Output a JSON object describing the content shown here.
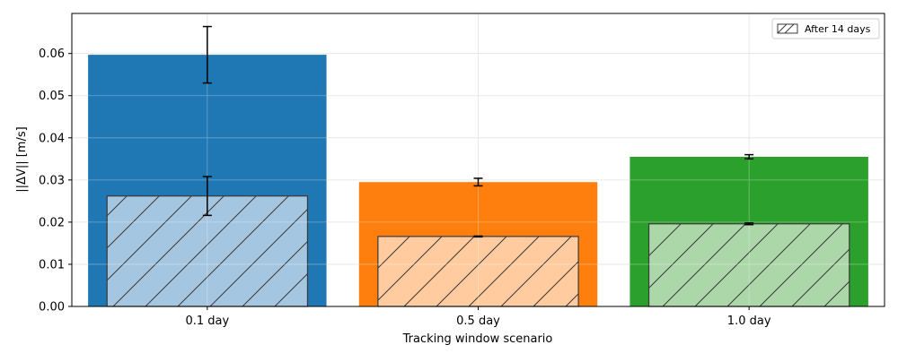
{
  "chart_data": {
    "type": "bar",
    "categories": [
      "0.1 day",
      "0.5 day",
      "1.0 day"
    ],
    "xlabel": "Tracking window scenario",
    "ylabel": "||ΔV|| [m/s]",
    "ylim": [
      0,
      0.0695
    ],
    "yticks": [
      0.0,
      0.01,
      0.02,
      0.03,
      0.04,
      0.05,
      0.06
    ],
    "grid": true,
    "legend_position": "top-right",
    "series": [
      {
        "values": [
          0.0597,
          0.0295,
          0.0355
        ],
        "error": [
          0.0067,
          0.0009,
          0.0005
        ],
        "colors": [
          "#1f77b4",
          "#ff7f0e",
          "#2ca02c"
        ]
      },
      {
        "name": "After 14 days",
        "values": [
          0.0262,
          0.0166,
          0.0196
        ],
        "error": [
          0.0046,
          0.0001,
          0.0002
        ],
        "colors": [
          "#a5c6e1",
          "#ffcb9f",
          "#abd7a9"
        ],
        "hatch": "/"
      }
    ]
  }
}
